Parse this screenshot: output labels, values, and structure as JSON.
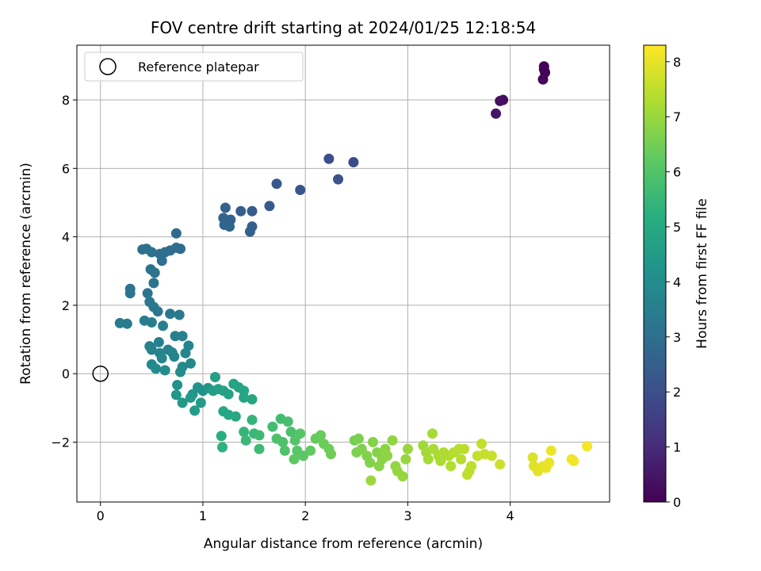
{
  "chart_data": {
    "type": "scatter",
    "title": "FOV centre drift starting at 2024/01/25 12:18:54",
    "xlabel": "Angular distance from reference (arcmin)",
    "ylabel": "Rotation from reference (arcmin)",
    "xlim": [
      -0.23,
      4.97
    ],
    "ylim": [
      -3.75,
      9.6
    ],
    "xticks": [
      0,
      1,
      2,
      3,
      4
    ],
    "yticks": [
      -2,
      0,
      2,
      4,
      6,
      8
    ],
    "grid": true,
    "legend": {
      "position": "top-left",
      "entries": [
        "Reference platepar"
      ]
    },
    "reference_point": {
      "x": 0,
      "y": 0,
      "label": "Reference platepar"
    },
    "colorbar": {
      "label": "Hours from first FF file",
      "range": [
        0,
        8.3
      ],
      "ticks": [
        0,
        1,
        2,
        3,
        4,
        5,
        6,
        7,
        8
      ],
      "colormap": "viridis"
    },
    "points": [
      {
        "x": 4.33,
        "y": 8.98,
        "t": 0.0
      },
      {
        "x": 4.33,
        "y": 8.9,
        "t": 0.05
      },
      {
        "x": 4.34,
        "y": 8.8,
        "t": 0.1
      },
      {
        "x": 4.32,
        "y": 8.6,
        "t": 0.15
      },
      {
        "x": 3.93,
        "y": 8.0,
        "t": 0.3
      },
      {
        "x": 3.9,
        "y": 7.97,
        "t": 0.35
      },
      {
        "x": 3.86,
        "y": 7.6,
        "t": 0.45
      },
      {
        "x": 2.47,
        "y": 6.18,
        "t": 1.9
      },
      {
        "x": 2.23,
        "y": 6.28,
        "t": 2.0
      },
      {
        "x": 2.32,
        "y": 5.68,
        "t": 2.1
      },
      {
        "x": 1.95,
        "y": 5.37,
        "t": 2.2
      },
      {
        "x": 1.72,
        "y": 5.55,
        "t": 2.25
      },
      {
        "x": 1.65,
        "y": 4.9,
        "t": 2.35
      },
      {
        "x": 1.48,
        "y": 4.75,
        "t": 2.4
      },
      {
        "x": 1.37,
        "y": 4.75,
        "t": 2.45
      },
      {
        "x": 1.48,
        "y": 4.3,
        "t": 2.5
      },
      {
        "x": 1.46,
        "y": 4.15,
        "t": 2.55
      },
      {
        "x": 1.22,
        "y": 4.85,
        "t": 2.6
      },
      {
        "x": 1.27,
        "y": 4.5,
        "t": 2.62
      },
      {
        "x": 1.2,
        "y": 4.55,
        "t": 2.65
      },
      {
        "x": 1.21,
        "y": 4.35,
        "t": 2.68
      },
      {
        "x": 1.26,
        "y": 4.3,
        "t": 2.7
      },
      {
        "x": 0.74,
        "y": 4.1,
        "t": 2.85
      },
      {
        "x": 0.78,
        "y": 3.65,
        "t": 2.9
      },
      {
        "x": 0.74,
        "y": 3.68,
        "t": 2.92
      },
      {
        "x": 0.68,
        "y": 3.6,
        "t": 2.95
      },
      {
        "x": 0.63,
        "y": 3.55,
        "t": 2.98
      },
      {
        "x": 0.58,
        "y": 3.5,
        "t": 3.0
      },
      {
        "x": 0.6,
        "y": 3.3,
        "t": 3.02
      },
      {
        "x": 0.45,
        "y": 3.65,
        "t": 3.05
      },
      {
        "x": 0.41,
        "y": 3.63,
        "t": 3.07
      },
      {
        "x": 0.5,
        "y": 3.55,
        "t": 3.1
      },
      {
        "x": 0.49,
        "y": 3.05,
        "t": 3.12
      },
      {
        "x": 0.53,
        "y": 2.95,
        "t": 3.15
      },
      {
        "x": 0.52,
        "y": 2.65,
        "t": 3.18
      },
      {
        "x": 0.29,
        "y": 2.48,
        "t": 3.2
      },
      {
        "x": 0.29,
        "y": 2.35,
        "t": 3.22
      },
      {
        "x": 0.46,
        "y": 2.35,
        "t": 3.25
      },
      {
        "x": 0.48,
        "y": 2.1,
        "t": 3.28
      },
      {
        "x": 0.52,
        "y": 1.95,
        "t": 3.3
      },
      {
        "x": 0.56,
        "y": 1.82,
        "t": 3.32
      },
      {
        "x": 0.68,
        "y": 1.75,
        "t": 3.35
      },
      {
        "x": 0.77,
        "y": 1.72,
        "t": 3.38
      },
      {
        "x": 0.19,
        "y": 1.48,
        "t": 3.4
      },
      {
        "x": 0.26,
        "y": 1.46,
        "t": 3.42
      },
      {
        "x": 0.43,
        "y": 1.55,
        "t": 3.45
      },
      {
        "x": 0.5,
        "y": 1.5,
        "t": 3.48
      },
      {
        "x": 0.61,
        "y": 1.4,
        "t": 3.5
      },
      {
        "x": 0.73,
        "y": 1.1,
        "t": 3.55
      },
      {
        "x": 0.8,
        "y": 1.1,
        "t": 3.58
      },
      {
        "x": 0.57,
        "y": 0.92,
        "t": 3.6
      },
      {
        "x": 0.48,
        "y": 0.8,
        "t": 3.62
      },
      {
        "x": 0.5,
        "y": 0.7,
        "t": 3.65
      },
      {
        "x": 0.58,
        "y": 0.6,
        "t": 3.68
      },
      {
        "x": 0.66,
        "y": 0.7,
        "t": 3.7
      },
      {
        "x": 0.7,
        "y": 0.62,
        "t": 3.72
      },
      {
        "x": 0.72,
        "y": 0.5,
        "t": 3.75
      },
      {
        "x": 0.6,
        "y": 0.45,
        "t": 3.78
      },
      {
        "x": 0.86,
        "y": 0.82,
        "t": 3.8
      },
      {
        "x": 0.83,
        "y": 0.6,
        "t": 3.82
      },
      {
        "x": 0.88,
        "y": 0.3,
        "t": 3.85
      },
      {
        "x": 0.8,
        "y": 0.2,
        "t": 3.88
      },
      {
        "x": 0.78,
        "y": 0.05,
        "t": 3.9
      },
      {
        "x": 0.5,
        "y": 0.27,
        "t": 3.92
      },
      {
        "x": 0.54,
        "y": 0.15,
        "t": 3.95
      },
      {
        "x": 0.63,
        "y": 0.1,
        "t": 3.98
      },
      {
        "x": 0.75,
        "y": -0.33,
        "t": 4.1
      },
      {
        "x": 0.95,
        "y": -0.4,
        "t": 4.15
      },
      {
        "x": 1.0,
        "y": -0.5,
        "t": 4.2
      },
      {
        "x": 1.05,
        "y": -0.42,
        "t": 4.25
      },
      {
        "x": 0.9,
        "y": -0.6,
        "t": 4.3
      },
      {
        "x": 0.74,
        "y": -0.62,
        "t": 4.35
      },
      {
        "x": 0.8,
        "y": -0.85,
        "t": 4.4
      },
      {
        "x": 0.88,
        "y": -0.7,
        "t": 4.45
      },
      {
        "x": 0.98,
        "y": -0.85,
        "t": 4.5
      },
      {
        "x": 0.92,
        "y": -1.08,
        "t": 4.55
      },
      {
        "x": 1.1,
        "y": -0.5,
        "t": 4.6
      },
      {
        "x": 1.12,
        "y": -0.1,
        "t": 4.65
      },
      {
        "x": 1.15,
        "y": -0.45,
        "t": 4.7
      },
      {
        "x": 1.2,
        "y": -0.5,
        "t": 4.72
      },
      {
        "x": 1.25,
        "y": -0.6,
        "t": 4.75
      },
      {
        "x": 1.3,
        "y": -0.3,
        "t": 4.78
      },
      {
        "x": 1.35,
        "y": -0.4,
        "t": 4.8
      },
      {
        "x": 1.4,
        "y": -0.5,
        "t": 4.85
      },
      {
        "x": 1.4,
        "y": -0.7,
        "t": 4.88
      },
      {
        "x": 1.48,
        "y": -0.75,
        "t": 4.9
      },
      {
        "x": 1.2,
        "y": -1.1,
        "t": 4.92
      },
      {
        "x": 1.25,
        "y": -1.2,
        "t": 4.95
      },
      {
        "x": 1.32,
        "y": -1.25,
        "t": 4.98
      },
      {
        "x": 1.18,
        "y": -1.82,
        "t": 5.2
      },
      {
        "x": 1.19,
        "y": -2.15,
        "t": 5.3
      },
      {
        "x": 1.48,
        "y": -1.35,
        "t": 5.4
      },
      {
        "x": 1.4,
        "y": -1.7,
        "t": 5.45
      },
      {
        "x": 1.5,
        "y": -1.75,
        "t": 5.5
      },
      {
        "x": 1.42,
        "y": -1.95,
        "t": 5.55
      },
      {
        "x": 1.55,
        "y": -1.8,
        "t": 5.6
      },
      {
        "x": 1.55,
        "y": -2.2,
        "t": 5.65
      },
      {
        "x": 1.68,
        "y": -1.55,
        "t": 5.7
      },
      {
        "x": 1.76,
        "y": -1.32,
        "t": 5.75
      },
      {
        "x": 1.83,
        "y": -1.4,
        "t": 5.8
      },
      {
        "x": 1.86,
        "y": -1.7,
        "t": 5.85
      },
      {
        "x": 1.72,
        "y": -1.9,
        "t": 5.88
      },
      {
        "x": 1.78,
        "y": -2.0,
        "t": 5.9
      },
      {
        "x": 1.8,
        "y": -2.25,
        "t": 5.95
      },
      {
        "x": 1.9,
        "y": -1.95,
        "t": 6.0
      },
      {
        "x": 1.95,
        "y": -1.75,
        "t": 6.05
      },
      {
        "x": 1.92,
        "y": -2.25,
        "t": 6.1
      },
      {
        "x": 1.98,
        "y": -2.4,
        "t": 6.15
      },
      {
        "x": 1.89,
        "y": -2.5,
        "t": 6.2
      },
      {
        "x": 2.05,
        "y": -2.25,
        "t": 6.25
      },
      {
        "x": 2.1,
        "y": -1.9,
        "t": 6.3
      },
      {
        "x": 2.15,
        "y": -1.8,
        "t": 6.35
      },
      {
        "x": 2.18,
        "y": -2.05,
        "t": 6.4
      },
      {
        "x": 2.23,
        "y": -2.2,
        "t": 6.42
      },
      {
        "x": 2.25,
        "y": -2.35,
        "t": 6.45
      },
      {
        "x": 2.48,
        "y": -1.95,
        "t": 6.55
      },
      {
        "x": 2.52,
        "y": -1.9,
        "t": 6.6
      },
      {
        "x": 2.5,
        "y": -2.3,
        "t": 6.62
      },
      {
        "x": 2.55,
        "y": -2.2,
        "t": 6.65
      },
      {
        "x": 2.6,
        "y": -2.4,
        "t": 6.68
      },
      {
        "x": 2.63,
        "y": -2.6,
        "t": 6.7
      },
      {
        "x": 2.66,
        "y": -2.0,
        "t": 6.72
      },
      {
        "x": 2.7,
        "y": -2.3,
        "t": 6.75
      },
      {
        "x": 2.72,
        "y": -2.7,
        "t": 6.78
      },
      {
        "x": 2.75,
        "y": -2.5,
        "t": 6.8
      },
      {
        "x": 2.78,
        "y": -2.2,
        "t": 6.82
      },
      {
        "x": 2.8,
        "y": -2.4,
        "t": 6.85
      },
      {
        "x": 2.85,
        "y": -1.95,
        "t": 6.88
      },
      {
        "x": 2.88,
        "y": -2.7,
        "t": 6.9
      },
      {
        "x": 2.9,
        "y": -2.85,
        "t": 6.92
      },
      {
        "x": 2.95,
        "y": -3.0,
        "t": 6.95
      },
      {
        "x": 2.98,
        "y": -2.5,
        "t": 6.98
      },
      {
        "x": 3.0,
        "y": -2.2,
        "t": 7.0
      },
      {
        "x": 2.64,
        "y": -3.12,
        "t": 7.02
      },
      {
        "x": 3.15,
        "y": -2.1,
        "t": 7.1
      },
      {
        "x": 3.18,
        "y": -2.3,
        "t": 7.12
      },
      {
        "x": 3.2,
        "y": -2.5,
        "t": 7.15
      },
      {
        "x": 3.24,
        "y": -1.75,
        "t": 7.18
      },
      {
        "x": 3.25,
        "y": -2.2,
        "t": 7.2
      },
      {
        "x": 3.3,
        "y": -2.4,
        "t": 7.22
      },
      {
        "x": 3.32,
        "y": -2.55,
        "t": 7.25
      },
      {
        "x": 3.35,
        "y": -2.3,
        "t": 7.28
      },
      {
        "x": 3.4,
        "y": -2.4,
        "t": 7.3
      },
      {
        "x": 3.42,
        "y": -2.7,
        "t": 7.32
      },
      {
        "x": 3.45,
        "y": -2.3,
        "t": 7.35
      },
      {
        "x": 3.5,
        "y": -2.2,
        "t": 7.38
      },
      {
        "x": 3.52,
        "y": -2.5,
        "t": 7.4
      },
      {
        "x": 3.55,
        "y": -2.2,
        "t": 7.42
      },
      {
        "x": 3.6,
        "y": -2.85,
        "t": 7.45
      },
      {
        "x": 3.58,
        "y": -2.95,
        "t": 7.48
      },
      {
        "x": 3.62,
        "y": -2.7,
        "t": 7.5
      },
      {
        "x": 3.68,
        "y": -2.4,
        "t": 7.52
      },
      {
        "x": 3.72,
        "y": -2.05,
        "t": 7.55
      },
      {
        "x": 3.75,
        "y": -2.35,
        "t": 7.58
      },
      {
        "x": 3.82,
        "y": -2.4,
        "t": 7.6
      },
      {
        "x": 3.9,
        "y": -2.65,
        "t": 7.65
      },
      {
        "x": 4.22,
        "y": -2.45,
        "t": 7.85
      },
      {
        "x": 4.23,
        "y": -2.7,
        "t": 7.9
      },
      {
        "x": 4.27,
        "y": -2.85,
        "t": 7.95
      },
      {
        "x": 4.32,
        "y": -2.7,
        "t": 8.0
      },
      {
        "x": 4.35,
        "y": -2.75,
        "t": 8.02
      },
      {
        "x": 4.38,
        "y": -2.6,
        "t": 8.05
      },
      {
        "x": 4.4,
        "y": -2.25,
        "t": 8.08
      },
      {
        "x": 4.6,
        "y": -2.5,
        "t": 8.12
      },
      {
        "x": 4.62,
        "y": -2.55,
        "t": 8.15
      },
      {
        "x": 4.75,
        "y": -2.12,
        "t": 8.2
      }
    ]
  }
}
